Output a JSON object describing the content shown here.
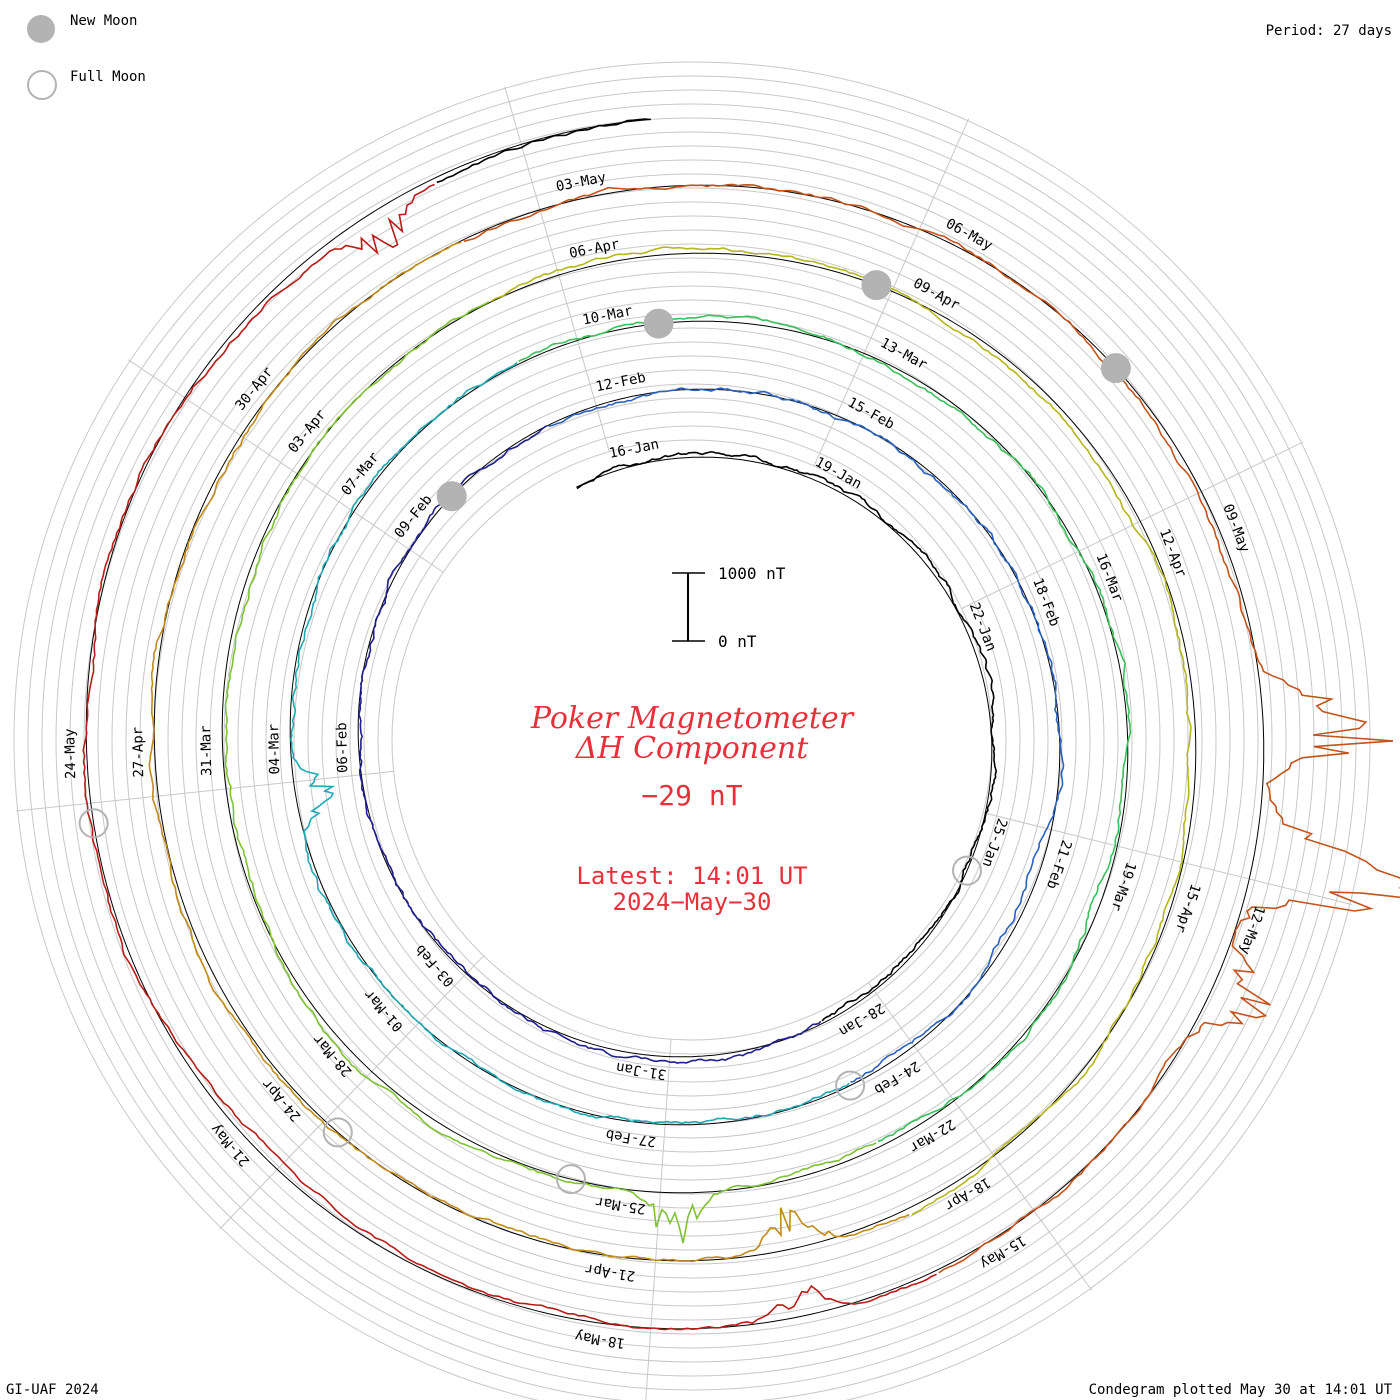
{
  "legend": {
    "new_moon_label": "New Moon",
    "full_moon_label": "Full Moon"
  },
  "period_label": "Period: 27 days",
  "footer_left": "GI-UAF 2024",
  "footer_right": "Condegram plotted May 30 at 14:01 UT",
  "center": {
    "title_line1": "Poker Magnetometer",
    "title_line2": "ΔH Component",
    "current_value": "−29 nT",
    "latest_line1": "Latest: 14:01 UT",
    "latest_line2": "2024−May−30"
  },
  "scale_bar": {
    "top_label": "1000 nT",
    "bottom_label": "0 nT"
  },
  "colors": {
    "accent_red": "#e8303a",
    "grid": "#c8c8c8",
    "moon": "#b3b3b3",
    "rev_colors": [
      "#000000",
      "#1f1f8f",
      "#2a62c0",
      "#1fa8b4",
      "#3bbf5a",
      "#7ec234",
      "#b6b61e",
      "#c28a1a",
      "#c4531b",
      "#b81c17"
    ]
  },
  "chart_data": {
    "type": "line",
    "subtype": "spiral condegram",
    "period_days": 27,
    "start_date": "2024-01-15",
    "end_date": "2024-05-30",
    "date_labels": [
      "16-Jan",
      "19-Jan",
      "22-Jan",
      "25-Jan",
      "28-Jan",
      "31-Jan",
      "03-Feb",
      "06-Feb",
      "09-Feb",
      "12-Feb",
      "15-Feb",
      "18-Feb",
      "21-Feb",
      "24-Feb",
      "27-Feb",
      "01-Mar",
      "04-Mar",
      "07-Mar",
      "10-Mar",
      "13-Mar",
      "16-Mar",
      "19-Mar",
      "22-Mar",
      "25-Mar",
      "28-Mar",
      "31-Mar",
      "03-Apr",
      "06-Apr",
      "09-Apr",
      "12-Apr",
      "15-Apr",
      "18-Apr",
      "21-Apr",
      "24-Apr",
      "27-Apr",
      "30-Apr",
      "03-May",
      "06-May",
      "09-May",
      "12-May",
      "15-May",
      "18-May",
      "21-May",
      "24-May"
    ],
    "new_moon_dates": [
      "2024-02-09",
      "2024-03-10",
      "2024-04-08",
      "2024-05-07"
    ],
    "full_moon_dates": [
      "2024-01-25",
      "2024-02-24",
      "2024-03-25",
      "2024-04-23",
      "2024-05-23"
    ],
    "disturbances": [
      {
        "date": "2024-03-03",
        "delta_nT": -600
      },
      {
        "date": "2024-03-24",
        "delta_nT": 700
      },
      {
        "date": "2024-04-19",
        "delta_nT": -500
      },
      {
        "date": "2024-05-10",
        "delta_nT": 1800
      },
      {
        "date": "2024-05-11",
        "delta_nT": 2100
      },
      {
        "date": "2024-05-12",
        "delta_nT": 900
      },
      {
        "date": "2024-05-16",
        "delta_nT": -400
      },
      {
        "date": "2024-05-28",
        "delta_nT": -500
      }
    ],
    "units": "nT",
    "latest_value_nT": -29
  }
}
